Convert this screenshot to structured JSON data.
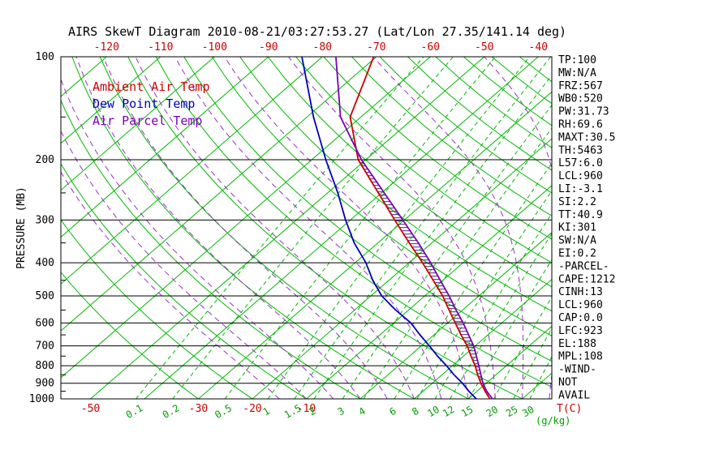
{
  "chart_data": {
    "type": "line",
    "subtype": "skewt_log_p",
    "title": "AIRS SkewT Diagram 2010-08-21/03:27:53.27 (Lat/Lon 27.35/141.14 deg)",
    "ylabel": "PRESSURE (MB)",
    "xlabel_temp": "T(C)",
    "xlabel_mixing": "(g/kg)",
    "axis": {
      "pressure_top_mb": 100,
      "pressure_bottom_mb": 1000,
      "pressure_ticks": [
        100,
        200,
        300,
        400,
        500,
        600,
        700,
        800,
        900,
        1000
      ],
      "pressure_minor_ticks": [
        150,
        250,
        350,
        450,
        550,
        650,
        750,
        850,
        950
      ],
      "top_temp_labels": [
        -120,
        -110,
        -100,
        -90,
        -80,
        -70,
        -60,
        -50,
        -40
      ],
      "bottom_temp_labels": [
        -50,
        -30,
        -20,
        -10
      ]
    },
    "grid": {
      "isotherms_c": {
        "min": -120,
        "max": 40,
        "step": 10
      },
      "dry_adiabats_c": {
        "min": -30,
        "max": 170,
        "step": 10
      },
      "moist_adiabats_surface_c": {
        "min": -15,
        "max": 45,
        "step": 5
      },
      "mixing_ratio_g_kg": [
        0.1,
        0.2,
        0.5,
        1,
        1.5,
        2,
        3,
        4,
        6,
        8,
        10,
        12,
        15,
        20,
        25,
        30
      ]
    },
    "legend": [
      {
        "label": "Ambient Air Temp",
        "color": "#cc0000"
      },
      {
        "label": "Dew Point Temp",
        "color": "#0000bb"
      },
      {
        "label": "Air Parcel Temp",
        "color": "#7a00b8"
      }
    ],
    "series": [
      {
        "name": "ambient_air_temp",
        "color": "#cc0000",
        "pressure_mb": [
          1000,
          950,
          900,
          850,
          800,
          750,
          700,
          650,
          600,
          550,
          500,
          450,
          400,
          350,
          300,
          250,
          200,
          150,
          100
        ],
        "temp_c": [
          24.0,
          21.5,
          19.0,
          16.6,
          14.2,
          11.4,
          8.5,
          5.0,
          1.4,
          -2.5,
          -6.7,
          -11.8,
          -17.5,
          -24.2,
          -31.8,
          -40.6,
          -51.4,
          -62.0,
          -70.5
        ]
      },
      {
        "name": "dew_point_temp",
        "color": "#0000bb",
        "pressure_mb": [
          1000,
          950,
          900,
          850,
          800,
          750,
          700,
          650,
          600,
          550,
          500,
          450,
          400,
          350,
          300,
          250,
          200,
          150,
          100
        ],
        "temp_c": [
          21.5,
          18.5,
          15.6,
          12.2,
          8.9,
          5.2,
          1.5,
          -2.6,
          -6.8,
          -12.4,
          -18.0,
          -23.0,
          -28.0,
          -34.4,
          -40.9,
          -48.1,
          -57.4,
          -68.8,
          -83.8
        ]
      },
      {
        "name": "air_parcel_temp",
        "color": "#7a00b8",
        "pressure_mb": [
          1000,
          950,
          900,
          850,
          800,
          750,
          700,
          650,
          600,
          550,
          500,
          450,
          400,
          350,
          300,
          250,
          200,
          150,
          100
        ],
        "temp_c": [
          24.5,
          21.8,
          19.4,
          17.2,
          14.9,
          12.4,
          9.7,
          6.4,
          2.9,
          -1.2,
          -5.5,
          -10.5,
          -16.0,
          -22.5,
          -30.3,
          -39.5,
          -50.8,
          -63.8,
          -77.5
        ]
      }
    ],
    "cape_hatch": {
      "from_pressure_mb": 920,
      "to_pressure_mb": 190
    },
    "colors": {
      "grid_green": "#00b800",
      "moist_purple": "#9a30c8",
      "pressure_lines": "#000000",
      "hatch": "#3c0a78",
      "top_labels": "#cc0000",
      "bottom_temp_labels": "#cc0000",
      "mixing_labels": "#00a000",
      "stats_text": "#000000"
    },
    "stats": [
      "TP:100",
      "MW:N/A",
      "FRZ:567",
      "WB0:520",
      "PW:31.73",
      "RH:69.6",
      "MAXT:30.5",
      "TH:5463",
      "L57:6.0",
      "LCL:960",
      "LI:-3.1",
      "SI:2.2",
      "TT:40.9",
      "KI:301",
      "SW:N/A",
      "EI:0.2",
      "-PARCEL-",
      "CAPE:1212",
      "CINH:13",
      "LCL:960",
      "CAP:0.0",
      "LFC:923",
      "EL:188",
      "MPL:108",
      "-WIND-",
      "NOT",
      "AVAIL"
    ]
  }
}
